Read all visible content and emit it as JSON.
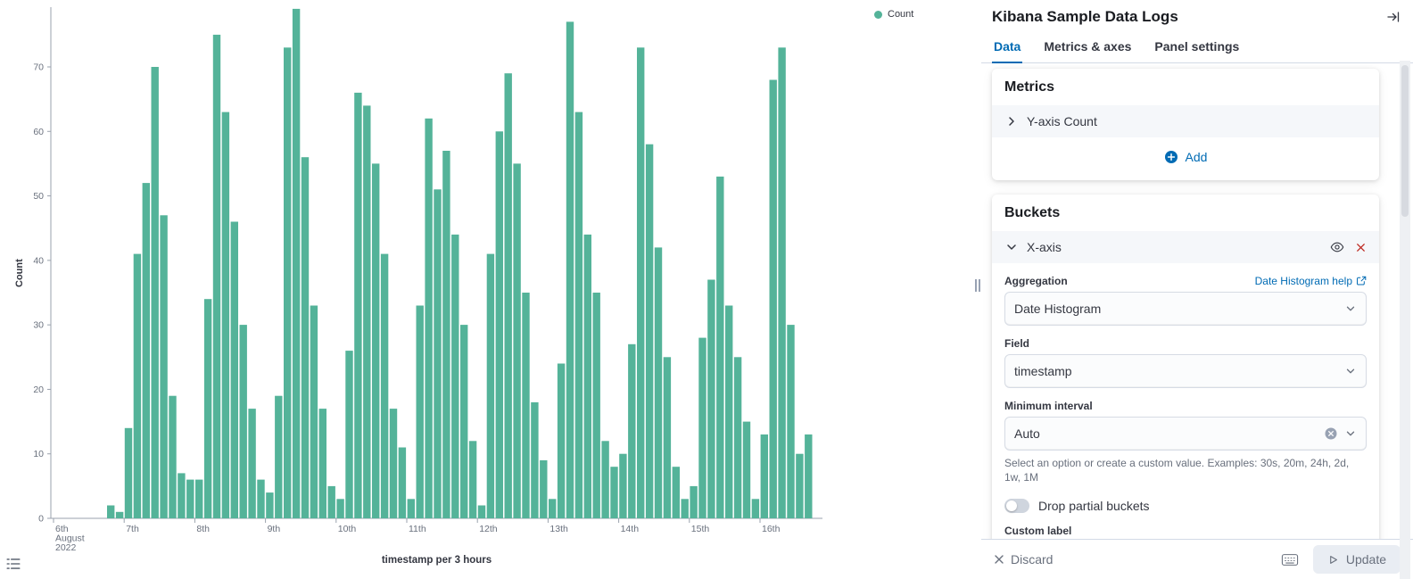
{
  "chart_data": {
    "type": "bar",
    "title": "",
    "xlabel": "timestamp per 3 hours",
    "ylabel": "Count",
    "legend": [
      "Count"
    ],
    "bar_color": "#54B399",
    "grid": false,
    "legend_position": "top-right",
    "ylim": [
      0,
      80
    ],
    "y_ticks": [
      0,
      10,
      20,
      30,
      40,
      50,
      60,
      70
    ],
    "x_tick_labels": [
      [
        "6th",
        "August",
        "2022"
      ],
      [
        "7th"
      ],
      [
        "8th"
      ],
      [
        "9th"
      ],
      [
        "10th"
      ],
      [
        "11th"
      ],
      [
        "12th"
      ],
      [
        "13th"
      ],
      [
        "14th"
      ],
      [
        "15th"
      ],
      [
        "16th"
      ]
    ],
    "x_tick_indices": [
      0,
      8,
      16,
      24,
      32,
      40,
      48,
      56,
      64,
      72,
      80
    ],
    "bucket_interval": "3 hours",
    "values": [
      0,
      0,
      0,
      0,
      0,
      0,
      2,
      1,
      14,
      41,
      52,
      70,
      47,
      19,
      7,
      6,
      6,
      34,
      75,
      63,
      46,
      30,
      17,
      6,
      4,
      19,
      73,
      79,
      56,
      33,
      17,
      5,
      3,
      26,
      66,
      64,
      55,
      41,
      17,
      11,
      3,
      33,
      62,
      51,
      57,
      44,
      30,
      12,
      2,
      41,
      60,
      69,
      55,
      35,
      18,
      9,
      3,
      24,
      77,
      63,
      44,
      35,
      12,
      8,
      10,
      27,
      73,
      58,
      42,
      25,
      8,
      3,
      5,
      28,
      37,
      53,
      33,
      25,
      15,
      3,
      13,
      68,
      73,
      30,
      10,
      13
    ]
  },
  "sidebar": {
    "title": "Kibana Sample Data Logs",
    "tabs": [
      {
        "label": "Data"
      },
      {
        "label": "Metrics & axes"
      },
      {
        "label": "Panel settings"
      }
    ],
    "metrics": {
      "heading": "Metrics",
      "row_label": "Y-axis Count",
      "add_label": "Add"
    },
    "buckets": {
      "heading": "Buckets",
      "row_label": "X-axis",
      "aggregation_label": "Aggregation",
      "aggregation_help": "Date Histogram help",
      "aggregation_value": "Date Histogram",
      "field_label": "Field",
      "field_value": "timestamp",
      "min_interval_label": "Minimum interval",
      "min_interval_value": "Auto",
      "min_interval_help": "Select an option or create a custom value. Examples: 30s, 20m, 24h, 2d, 1w, 1M",
      "drop_partial_label": "Drop partial buckets",
      "custom_label_label": "Custom label",
      "custom_label_value": ""
    },
    "footer": {
      "discard_label": "Discard",
      "update_label": "Update"
    }
  }
}
